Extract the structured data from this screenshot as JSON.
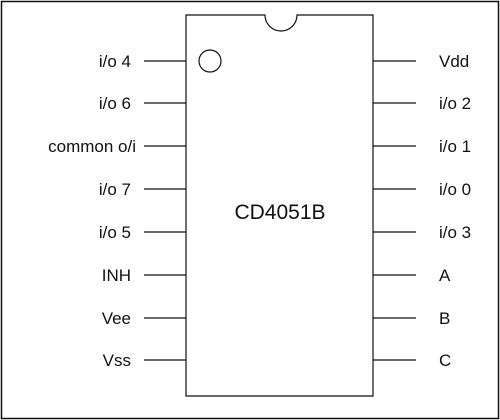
{
  "chip": {
    "name": "CD4051B"
  },
  "pins": {
    "left": [
      "i/o 4",
      "i/o 6",
      "common o/i",
      "i/o 7",
      "i/o 5",
      "INH",
      "Vee",
      "Vss"
    ],
    "right": [
      "Vdd",
      "i/o 2",
      "i/o 1",
      "i/o 0",
      "i/o 3",
      "A",
      "B",
      "C"
    ]
  },
  "colors": {
    "line": "#111111",
    "background": "#ffffff"
  }
}
